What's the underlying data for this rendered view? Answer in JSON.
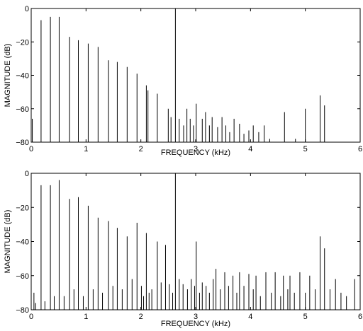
{
  "chart_data": [
    {
      "type": "line",
      "xlabel": "FREQUENCY (kHz)",
      "ylabel": "MAGNITUDE (dB)",
      "xlim": [
        0,
        6
      ],
      "ylim": [
        -80,
        0
      ],
      "xticks": [
        0,
        1,
        2,
        3,
        4,
        5,
        6
      ],
      "yticks": [
        0,
        -20,
        -40,
        -60,
        -80
      ],
      "grid": false,
      "stems": [
        [
          0.02,
          -66
        ],
        [
          0.18,
          -7
        ],
        [
          0.35,
          -5
        ],
        [
          0.51,
          -5
        ],
        [
          0.7,
          -17
        ],
        [
          0.86,
          -19
        ],
        [
          1.04,
          -21
        ],
        [
          1.22,
          -23
        ],
        [
          1.41,
          -31
        ],
        [
          1.57,
          -32
        ],
        [
          1.75,
          -35
        ],
        [
          1.93,
          -39
        ],
        [
          2.1,
          -46
        ],
        [
          2.13,
          -49
        ],
        [
          2.3,
          -51
        ],
        [
          2.5,
          -60
        ],
        [
          2.55,
          -65
        ],
        [
          2.63,
          0
        ],
        [
          2.7,
          -66
        ],
        [
          2.78,
          -70
        ],
        [
          2.84,
          -60
        ],
        [
          2.9,
          -66
        ],
        [
          2.96,
          -70
        ],
        [
          3.01,
          -57
        ],
        [
          3.12,
          -66
        ],
        [
          3.18,
          -62
        ],
        [
          3.25,
          -70
        ],
        [
          3.3,
          -65
        ],
        [
          3.4,
          -71
        ],
        [
          3.48,
          -65
        ],
        [
          3.55,
          -70
        ],
        [
          3.62,
          -74
        ],
        [
          3.7,
          -66
        ],
        [
          3.8,
          -69
        ],
        [
          3.88,
          -75
        ],
        [
          3.97,
          -73
        ],
        [
          4.05,
          -70
        ],
        [
          4.15,
          -74
        ],
        [
          4.25,
          -70
        ],
        [
          4.35,
          -78
        ],
        [
          4.62,
          -62
        ],
        [
          4.82,
          -78
        ],
        [
          5.0,
          -60
        ],
        [
          5.27,
          -52
        ],
        [
          5.35,
          -58
        ]
      ]
    },
    {
      "type": "line",
      "xlabel": "FREQUENCY (kHz)",
      "ylabel": "MAGNITUDE (dB)",
      "xlim": [
        0,
        6
      ],
      "ylim": [
        -80,
        0
      ],
      "xticks": [
        0,
        1,
        2,
        3,
        4,
        5,
        6
      ],
      "yticks": [
        0,
        -20,
        -40,
        -60,
        -80
      ],
      "grid": false,
      "stems": [
        [
          0.05,
          -70
        ],
        [
          0.08,
          -76
        ],
        [
          0.18,
          -7
        ],
        [
          0.25,
          -75
        ],
        [
          0.35,
          -7
        ],
        [
          0.42,
          -72
        ],
        [
          0.51,
          -4
        ],
        [
          0.6,
          -72
        ],
        [
          0.7,
          -15
        ],
        [
          0.78,
          -68
        ],
        [
          0.86,
          -14
        ],
        [
          0.95,
          -72
        ],
        [
          1.04,
          -19
        ],
        [
          1.13,
          -68
        ],
        [
          1.22,
          -26
        ],
        [
          1.3,
          -70
        ],
        [
          1.41,
          -28
        ],
        [
          1.49,
          -66
        ],
        [
          1.57,
          -32
        ],
        [
          1.66,
          -68
        ],
        [
          1.75,
          -37
        ],
        [
          1.84,
          -62
        ],
        [
          1.93,
          -29
        ],
        [
          2.01,
          -66
        ],
        [
          2.05,
          -72
        ],
        [
          2.1,
          -35
        ],
        [
          2.15,
          -70
        ],
        [
          2.2,
          -68
        ],
        [
          2.3,
          -40
        ],
        [
          2.37,
          -64
        ],
        [
          2.45,
          -42
        ],
        [
          2.52,
          -65
        ],
        [
          2.58,
          -70
        ],
        [
          2.63,
          0
        ],
        [
          2.7,
          -62
        ],
        [
          2.77,
          -65
        ],
        [
          2.85,
          -68
        ],
        [
          2.92,
          -62
        ],
        [
          2.98,
          -66
        ],
        [
          3.01,
          -40
        ],
        [
          3.07,
          -70
        ],
        [
          3.12,
          -64
        ],
        [
          3.19,
          -66
        ],
        [
          3.25,
          -70
        ],
        [
          3.32,
          -62
        ],
        [
          3.37,
          -56
        ],
        [
          3.45,
          -68
        ],
        [
          3.53,
          -58
        ],
        [
          3.6,
          -66
        ],
        [
          3.68,
          -60
        ],
        [
          3.75,
          -70
        ],
        [
          3.8,
          -58
        ],
        [
          3.88,
          -66
        ],
        [
          3.97,
          -59
        ],
        [
          4.05,
          -68
        ],
        [
          4.1,
          -60
        ],
        [
          4.18,
          -72
        ],
        [
          4.28,
          -58
        ],
        [
          4.38,
          -70
        ],
        [
          4.45,
          -58
        ],
        [
          4.55,
          -72
        ],
        [
          4.6,
          -60
        ],
        [
          4.68,
          -68
        ],
        [
          4.72,
          -60
        ],
        [
          4.8,
          -70
        ],
        [
          4.9,
          -58
        ],
        [
          5.0,
          -70
        ],
        [
          5.08,
          -60
        ],
        [
          5.18,
          -68
        ],
        [
          5.27,
          -37
        ],
        [
          5.35,
          -44
        ],
        [
          5.45,
          -68
        ],
        [
          5.55,
          -62
        ],
        [
          5.65,
          -70
        ],
        [
          5.75,
          -72
        ],
        [
          5.9,
          -62
        ]
      ]
    }
  ]
}
